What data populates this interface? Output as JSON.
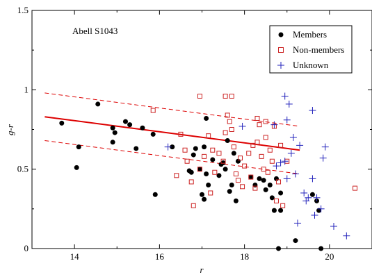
{
  "chart_data": {
    "type": "scatter",
    "annotation": "Abell S1043",
    "xlabel": "r",
    "ylabel": "g-r",
    "xlim": [
      13,
      21
    ],
    "ylim": [
      0,
      1.5
    ],
    "xticks": [
      14,
      16,
      18,
      20
    ],
    "yticks": [
      0,
      0.5,
      1,
      1.5
    ],
    "ytick_labels": [
      "0",
      "0.5",
      "1",
      "1.5"
    ],
    "grid": false,
    "legend_position": "top-right",
    "colors": {
      "members": "#000000",
      "non_members": "#cc2222",
      "unknown": "#2222bb",
      "fit": "#dd0000"
    },
    "fit_line": {
      "x": [
        13.3,
        19.3
      ],
      "y": [
        0.83,
        0.62
      ]
    },
    "fit_upper": {
      "x": [
        13.3,
        19.3
      ],
      "y": [
        0.98,
        0.77
      ]
    },
    "fit_lower": {
      "x": [
        13.3,
        19.3
      ],
      "y": [
        0.68,
        0.47
      ]
    },
    "series": [
      {
        "name": "Members",
        "marker": "filled-circle",
        "points": [
          [
            13.7,
            0.79
          ],
          [
            14.1,
            0.64
          ],
          [
            14.05,
            0.51
          ],
          [
            14.55,
            0.91
          ],
          [
            14.9,
            0.76
          ],
          [
            14.95,
            0.73
          ],
          [
            14.9,
            0.67
          ],
          [
            15.2,
            0.8
          ],
          [
            15.3,
            0.78
          ],
          [
            15.45,
            0.63
          ],
          [
            15.6,
            0.76
          ],
          [
            15.85,
            0.72
          ],
          [
            15.9,
            0.34
          ],
          [
            16.3,
            0.64
          ],
          [
            16.7,
            0.49
          ],
          [
            16.75,
            0.48
          ],
          [
            16.8,
            0.59
          ],
          [
            16.85,
            0.63
          ],
          [
            16.95,
            0.5
          ],
          [
            17.0,
            0.34
          ],
          [
            17.05,
            0.64
          ],
          [
            17.05,
            0.31
          ],
          [
            17.1,
            0.47
          ],
          [
            17.1,
            0.82
          ],
          [
            17.15,
            0.4
          ],
          [
            17.25,
            0.56
          ],
          [
            17.4,
            0.46
          ],
          [
            17.45,
            0.53
          ],
          [
            17.5,
            0.54
          ],
          [
            17.55,
            0.5
          ],
          [
            17.6,
            0.68
          ],
          [
            17.65,
            0.36
          ],
          [
            17.7,
            0.4
          ],
          [
            17.75,
            0.6
          ],
          [
            17.8,
            0.3
          ],
          [
            17.85,
            0.55
          ],
          [
            18.15,
            0.45
          ],
          [
            18.25,
            0.4
          ],
          [
            18.35,
            0.44
          ],
          [
            18.45,
            0.43
          ],
          [
            18.5,
            0.37
          ],
          [
            18.6,
            0.4
          ],
          [
            18.65,
            0.32
          ],
          [
            18.7,
            0.24
          ],
          [
            18.75,
            0.44
          ],
          [
            18.8,
            0.0
          ],
          [
            18.85,
            0.35
          ],
          [
            18.85,
            0.24
          ],
          [
            19.2,
            0.05
          ],
          [
            19.6,
            0.34
          ],
          [
            19.7,
            0.3
          ],
          [
            19.75,
            0.24
          ],
          [
            19.8,
            0.0
          ]
        ]
      },
      {
        "name": "Non-members",
        "marker": "open-square",
        "points": [
          [
            15.85,
            0.87
          ],
          [
            16.4,
            0.46
          ],
          [
            16.5,
            0.72
          ],
          [
            16.6,
            0.62
          ],
          [
            16.65,
            0.55
          ],
          [
            16.75,
            0.42
          ],
          [
            16.8,
            0.27
          ],
          [
            16.95,
            0.96
          ],
          [
            16.95,
            0.5
          ],
          [
            17.05,
            0.58
          ],
          [
            17.15,
            0.71
          ],
          [
            17.2,
            0.35
          ],
          [
            17.25,
            0.62
          ],
          [
            17.3,
            0.48
          ],
          [
            17.4,
            0.6
          ],
          [
            17.5,
            0.55
          ],
          [
            17.55,
            0.96
          ],
          [
            17.55,
            0.73
          ],
          [
            17.6,
            0.84
          ],
          [
            17.65,
            0.8
          ],
          [
            17.7,
            0.96
          ],
          [
            17.7,
            0.75
          ],
          [
            17.75,
            0.64
          ],
          [
            17.8,
            0.47
          ],
          [
            17.85,
            0.43
          ],
          [
            17.9,
            0.57
          ],
          [
            17.95,
            0.39
          ],
          [
            18.0,
            0.52
          ],
          [
            18.1,
            0.6
          ],
          [
            18.15,
            0.45
          ],
          [
            18.2,
            0.65
          ],
          [
            18.25,
            0.38
          ],
          [
            18.3,
            0.67
          ],
          [
            18.3,
            0.82
          ],
          [
            18.35,
            0.78
          ],
          [
            18.4,
            0.58
          ],
          [
            18.45,
            0.5
          ],
          [
            18.5,
            0.7
          ],
          [
            18.5,
            0.8
          ],
          [
            18.55,
            0.48
          ],
          [
            18.6,
            0.62
          ],
          [
            18.65,
            0.55
          ],
          [
            18.7,
            0.77
          ],
          [
            18.75,
            0.3
          ],
          [
            18.8,
            0.42
          ],
          [
            18.85,
            0.65
          ],
          [
            18.9,
            0.27
          ],
          [
            19.0,
            0.55
          ],
          [
            20.6,
            0.38
          ]
        ]
      },
      {
        "name": "Unknown",
        "marker": "plus",
        "points": [
          [
            16.2,
            0.64
          ],
          [
            17.95,
            0.77
          ],
          [
            18.7,
            0.78
          ],
          [
            18.75,
            0.52
          ],
          [
            18.85,
            0.54
          ],
          [
            18.95,
            0.96
          ],
          [
            18.95,
            0.55
          ],
          [
            19.0,
            0.81
          ],
          [
            19.0,
            0.44
          ],
          [
            19.05,
            0.91
          ],
          [
            19.1,
            0.6
          ],
          [
            19.15,
            0.7
          ],
          [
            19.2,
            0.47
          ],
          [
            19.25,
            0.16
          ],
          [
            19.3,
            0.65
          ],
          [
            19.4,
            0.35
          ],
          [
            19.45,
            0.3
          ],
          [
            19.5,
            0.32
          ],
          [
            19.6,
            0.87
          ],
          [
            19.6,
            0.44
          ],
          [
            19.65,
            0.21
          ],
          [
            19.7,
            0.32
          ],
          [
            19.8,
            0.25
          ],
          [
            19.85,
            0.57
          ],
          [
            19.9,
            0.64
          ],
          [
            20.1,
            0.14
          ],
          [
            20.4,
            0.08
          ]
        ]
      }
    ]
  }
}
